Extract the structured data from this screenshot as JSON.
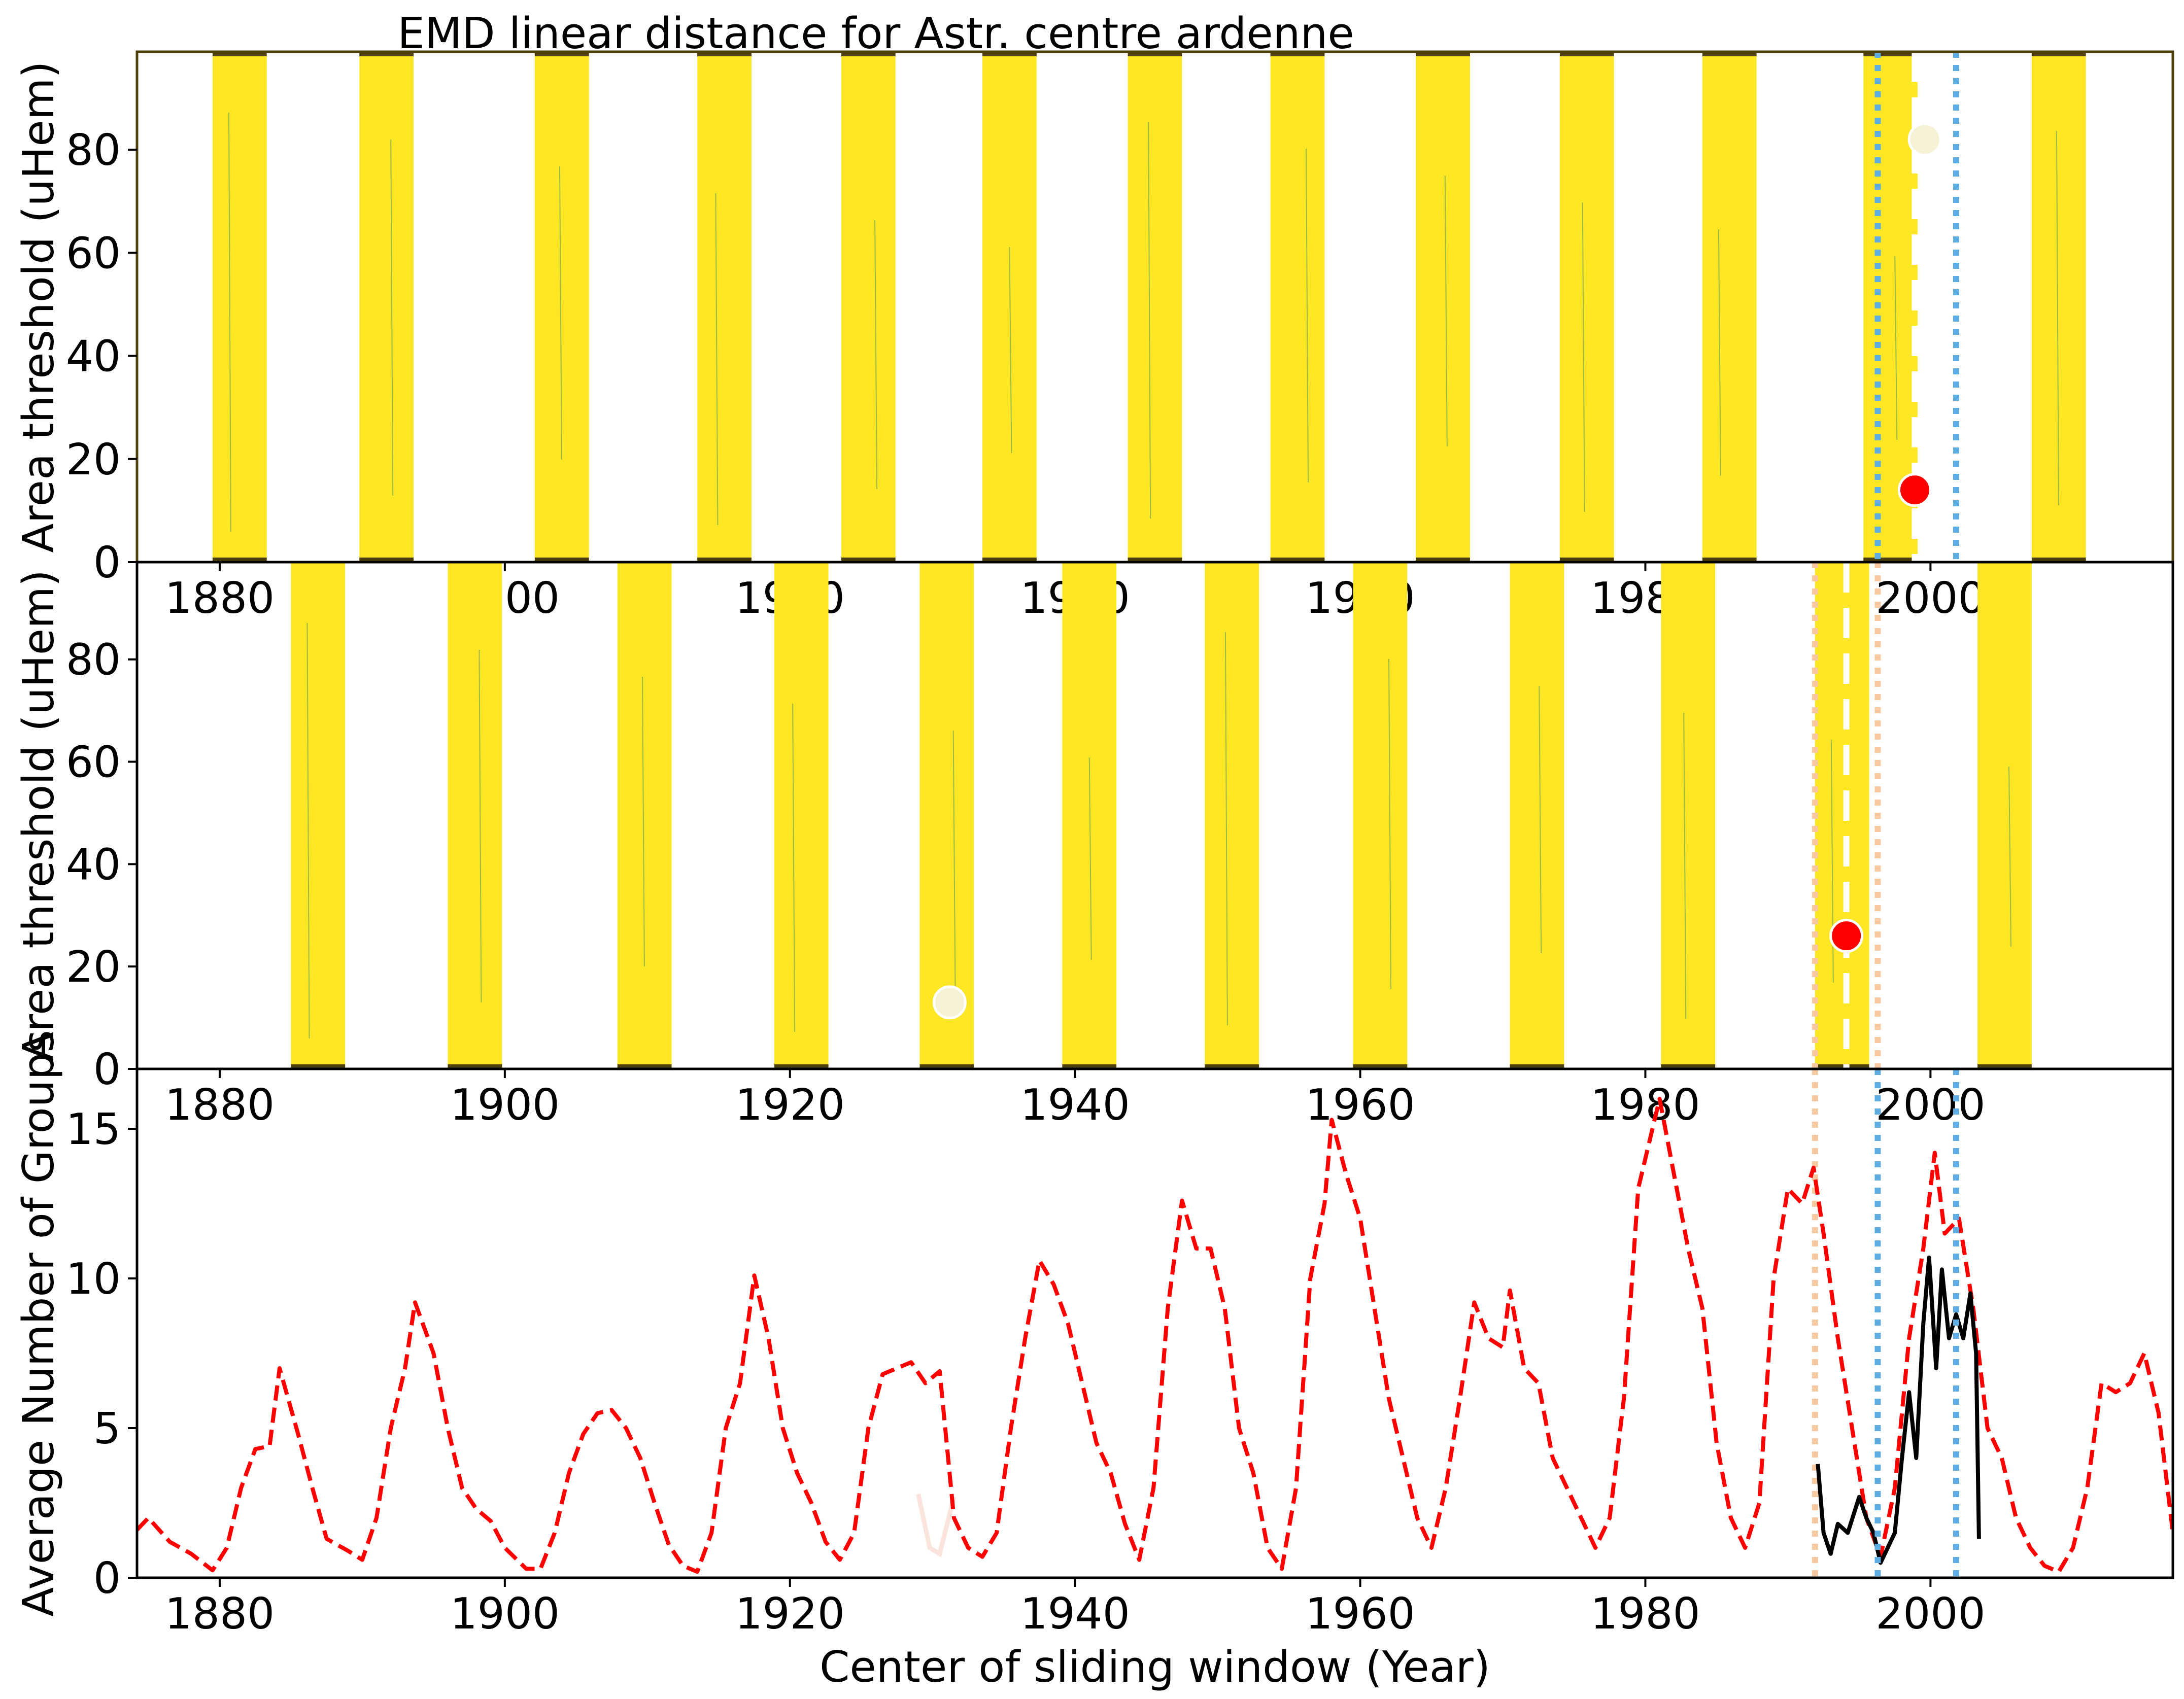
{
  "figure_title": "EMD linear distance for Astr. centre ardenne",
  "colors": {
    "band": "#fde725",
    "band_edge": "#4e3f0a",
    "ref_line": "#ff0000",
    "obs_line": "#000000",
    "blue_lines": "#5dade2",
    "orange_lines": "#f8c9a0",
    "best_marker": "#ff0000",
    "second_marker": "#f5f2d6",
    "frame_top": "#4e3f0a",
    "frame_mid": "#000000"
  },
  "chart_data": [
    {
      "type": "heatmap",
      "title": "EMD linear distance for Astr. centre ardenne",
      "ylabel": "Area threshold (uHem)",
      "xlim": [
        1874.2,
        2017.0
      ],
      "ylim": [
        0,
        99
      ],
      "xticks": [
        1880,
        1900,
        1920,
        1940,
        1960,
        1980,
        2000
      ],
      "yticks": [
        0,
        20,
        40,
        60,
        80
      ],
      "bands": [
        [
          1879.5,
          1883.3
        ],
        [
          1889.8,
          1893.6
        ],
        [
          1902.1,
          1905.9
        ],
        [
          1913.5,
          1917.3
        ],
        [
          1923.6,
          1927.4
        ],
        [
          1933.5,
          1937.3
        ],
        [
          1943.7,
          1947.5
        ],
        [
          1953.7,
          1957.5
        ],
        [
          1963.9,
          1967.7
        ],
        [
          1974.0,
          1977.8
        ],
        [
          1984.0,
          1987.8
        ],
        [
          1995.3,
          1999.1
        ],
        [
          2007.1,
          2010.9
        ]
      ],
      "best_point": {
        "x": 1998.9,
        "y": 14
      },
      "second_point": {
        "x": 1999.6,
        "y": 82
      },
      "dashed_center": 1998.9,
      "dotted_bounds": [
        1996.3,
        2001.8
      ]
    },
    {
      "type": "heatmap",
      "ylabel": "Area threshold (uHem)",
      "xlim": [
        1874.2,
        2017.0
      ],
      "ylim": [
        0,
        99
      ],
      "xticks": [
        1880,
        1900,
        1920,
        1940,
        1960,
        1980,
        2000
      ],
      "yticks": [
        0,
        20,
        40,
        60,
        80
      ],
      "bands": [
        [
          1885.0,
          1888.8
        ],
        [
          1896.0,
          1899.8
        ],
        [
          1907.9,
          1911.7
        ],
        [
          1918.9,
          1922.7
        ],
        [
          1929.1,
          1932.9
        ],
        [
          1939.1,
          1942.9
        ],
        [
          1949.1,
          1952.9
        ],
        [
          1959.5,
          1963.3
        ],
        [
          1970.5,
          1974.3
        ],
        [
          1981.1,
          1984.9
        ],
        [
          1991.9,
          1995.7
        ],
        [
          2003.3,
          2007.1
        ]
      ],
      "best_point": {
        "x": 1994.1,
        "y": 26
      },
      "second_point": {
        "x": 1931.2,
        "y": 13
      },
      "dashed_center": 1994.1,
      "dotted_bounds": [
        1991.9,
        1996.3
      ]
    },
    {
      "type": "line",
      "xlabel": "Center of sliding window (Year)",
      "ylabel": "Average Number of Groups",
      "xlim": [
        1874.2,
        2017.0
      ],
      "ylim": [
        0,
        17
      ],
      "xticks": [
        1880,
        1900,
        1920,
        1940,
        1960,
        1980,
        2000
      ],
      "yticks": [
        0,
        5,
        10,
        15
      ],
      "reference_series": {
        "style": "dashed",
        "points": [
          [
            1874.2,
            1.6
          ],
          [
            1875.0,
            2.0
          ],
          [
            1876.5,
            1.2
          ],
          [
            1878.0,
            0.8
          ],
          [
            1879.5,
            0.25
          ],
          [
            1880.5,
            1.0
          ],
          [
            1881.5,
            3.0
          ],
          [
            1882.5,
            4.3
          ],
          [
            1883.5,
            4.4
          ],
          [
            1884.2,
            7.0
          ],
          [
            1885.5,
            4.8
          ],
          [
            1886.5,
            3.0
          ],
          [
            1887.5,
            1.3
          ],
          [
            1889.0,
            0.9
          ],
          [
            1890.0,
            0.6
          ],
          [
            1891.0,
            2.0
          ],
          [
            1892.0,
            5.0
          ],
          [
            1893.0,
            7.0
          ],
          [
            1893.7,
            9.2
          ],
          [
            1895.0,
            7.5
          ],
          [
            1896.0,
            5.0
          ],
          [
            1897.0,
            3.0
          ],
          [
            1898.0,
            2.3
          ],
          [
            1899.0,
            1.9
          ],
          [
            1900.0,
            1.0
          ],
          [
            1901.5,
            0.3
          ],
          [
            1902.5,
            0.3
          ],
          [
            1903.5,
            1.5
          ],
          [
            1904.5,
            3.5
          ],
          [
            1905.5,
            4.8
          ],
          [
            1906.5,
            5.5
          ],
          [
            1907.5,
            5.6
          ],
          [
            1908.5,
            5.0
          ],
          [
            1909.5,
            4.0
          ],
          [
            1910.5,
            2.5
          ],
          [
            1911.5,
            1.1
          ],
          [
            1912.5,
            0.4
          ],
          [
            1913.5,
            0.2
          ],
          [
            1914.5,
            1.5
          ],
          [
            1915.5,
            5.0
          ],
          [
            1916.5,
            6.5
          ],
          [
            1917.5,
            10.1
          ],
          [
            1918.5,
            8.0
          ],
          [
            1919.5,
            5.0
          ],
          [
            1920.5,
            3.5
          ],
          [
            1921.5,
            2.5
          ],
          [
            1922.5,
            1.2
          ],
          [
            1923.5,
            0.6
          ],
          [
            1924.5,
            1.5
          ],
          [
            1925.5,
            5.0
          ],
          [
            1926.5,
            6.8
          ],
          [
            1927.5,
            7.0
          ],
          [
            1928.5,
            7.2
          ],
          [
            1929.5,
            6.5
          ],
          [
            1930.5,
            6.9
          ],
          [
            1931.5,
            2.0
          ],
          [
            1932.5,
            1.0
          ],
          [
            1933.5,
            0.7
          ],
          [
            1934.5,
            1.5
          ],
          [
            1935.5,
            5.0
          ],
          [
            1936.5,
            8.0
          ],
          [
            1937.5,
            10.6
          ],
          [
            1938.5,
            9.8
          ],
          [
            1939.5,
            8.5
          ],
          [
            1940.5,
            6.5
          ],
          [
            1941.5,
            4.5
          ],
          [
            1942.5,
            3.5
          ],
          [
            1943.5,
            1.8
          ],
          [
            1944.5,
            0.6
          ],
          [
            1945.5,
            3.0
          ],
          [
            1946.5,
            9.0
          ],
          [
            1947.5,
            12.6
          ],
          [
            1948.5,
            11.0
          ],
          [
            1949.5,
            11.0
          ],
          [
            1950.5,
            9.0
          ],
          [
            1951.5,
            5.0
          ],
          [
            1952.5,
            3.5
          ],
          [
            1953.5,
            1.0
          ],
          [
            1954.5,
            0.3
          ],
          [
            1955.5,
            3.0
          ],
          [
            1956.5,
            10.0
          ],
          [
            1957.5,
            12.5
          ],
          [
            1958.0,
            15.3
          ],
          [
            1959.0,
            13.5
          ],
          [
            1960.0,
            12.0
          ],
          [
            1961.0,
            9.0
          ],
          [
            1962.0,
            6.0
          ],
          [
            1963.0,
            4.0
          ],
          [
            1964.0,
            2.0
          ],
          [
            1965.0,
            1.0
          ],
          [
            1966.0,
            3.0
          ],
          [
            1967.0,
            6.0
          ],
          [
            1968.0,
            9.2
          ],
          [
            1969.0,
            8.0
          ],
          [
            1970.0,
            7.7
          ],
          [
            1970.5,
            9.6
          ],
          [
            1971.5,
            7.0
          ],
          [
            1972.5,
            6.5
          ],
          [
            1973.5,
            4.0
          ],
          [
            1974.5,
            3.0
          ],
          [
            1975.5,
            2.0
          ],
          [
            1976.5,
            1.0
          ],
          [
            1977.5,
            2.0
          ],
          [
            1978.5,
            6.0
          ],
          [
            1979.5,
            13.0
          ],
          [
            1980.5,
            15.0
          ],
          [
            1981.0,
            16.0
          ],
          [
            1982.0,
            13.5
          ],
          [
            1983.0,
            11.0
          ],
          [
            1984.0,
            9.0
          ],
          [
            1985.0,
            4.5
          ],
          [
            1986.0,
            2.0
          ],
          [
            1987.0,
            1.0
          ],
          [
            1988.0,
            2.5
          ],
          [
            1989.0,
            10.0
          ],
          [
            1990.0,
            13.0
          ],
          [
            1991.0,
            12.5
          ],
          [
            1991.8,
            13.7
          ],
          [
            1992.5,
            11.5
          ],
          [
            1993.5,
            8.0
          ],
          [
            1994.5,
            5.0
          ],
          [
            1995.5,
            2.0
          ],
          [
            1996.5,
            0.7
          ],
          [
            1997.5,
            3.0
          ],
          [
            1998.5,
            8.0
          ],
          [
            1999.5,
            11.0
          ],
          [
            2000.3,
            14.2
          ],
          [
            2001.0,
            11.5
          ],
          [
            2002.0,
            12.0
          ],
          [
            2003.0,
            9.0
          ],
          [
            2004.0,
            5.0
          ],
          [
            2005.0,
            4.0
          ],
          [
            2006.0,
            2.0
          ],
          [
            2007.0,
            1.0
          ],
          [
            2008.0,
            0.4
          ],
          [
            2009.0,
            0.2
          ],
          [
            2010.0,
            1.0
          ],
          [
            2011.0,
            3.0
          ],
          [
            2012.0,
            6.5
          ],
          [
            2013.0,
            6.2
          ],
          [
            2014.0,
            6.5
          ],
          [
            2015.0,
            7.5
          ],
          [
            2016.0,
            5.5
          ],
          [
            2017.0,
            1.5
          ]
        ]
      },
      "observer_series": {
        "style": "solid",
        "points": [
          [
            1992.1,
            3.8
          ],
          [
            1992.5,
            1.5
          ],
          [
            1993.0,
            0.8
          ],
          [
            1993.5,
            1.8
          ],
          [
            1994.2,
            1.5
          ],
          [
            1995.0,
            2.7
          ],
          [
            1995.5,
            2.0
          ],
          [
            1996.0,
            1.5
          ],
          [
            1996.5,
            0.5
          ],
          [
            1997.5,
            1.5
          ],
          [
            1998.0,
            4.0
          ],
          [
            1998.5,
            6.2
          ],
          [
            1999.0,
            4.0
          ],
          [
            1999.5,
            8.5
          ],
          [
            1999.9,
            10.7
          ],
          [
            2000.4,
            7.0
          ],
          [
            2000.8,
            10.3
          ],
          [
            2001.3,
            8.0
          ],
          [
            2001.8,
            8.8
          ],
          [
            2002.3,
            8.0
          ],
          [
            2002.8,
            9.5
          ],
          [
            2003.2,
            7.5
          ],
          [
            2003.4,
            1.3
          ]
        ]
      },
      "faint_segment": [
        [
          1929.0,
          2.8
        ],
        [
          1929.8,
          1.0
        ],
        [
          1930.5,
          0.8
        ],
        [
          1931.5,
          2.7
        ]
      ],
      "blue_dotted": [
        1996.3,
        2001.8
      ],
      "orange_dotted": [
        1991.9
      ]
    }
  ]
}
